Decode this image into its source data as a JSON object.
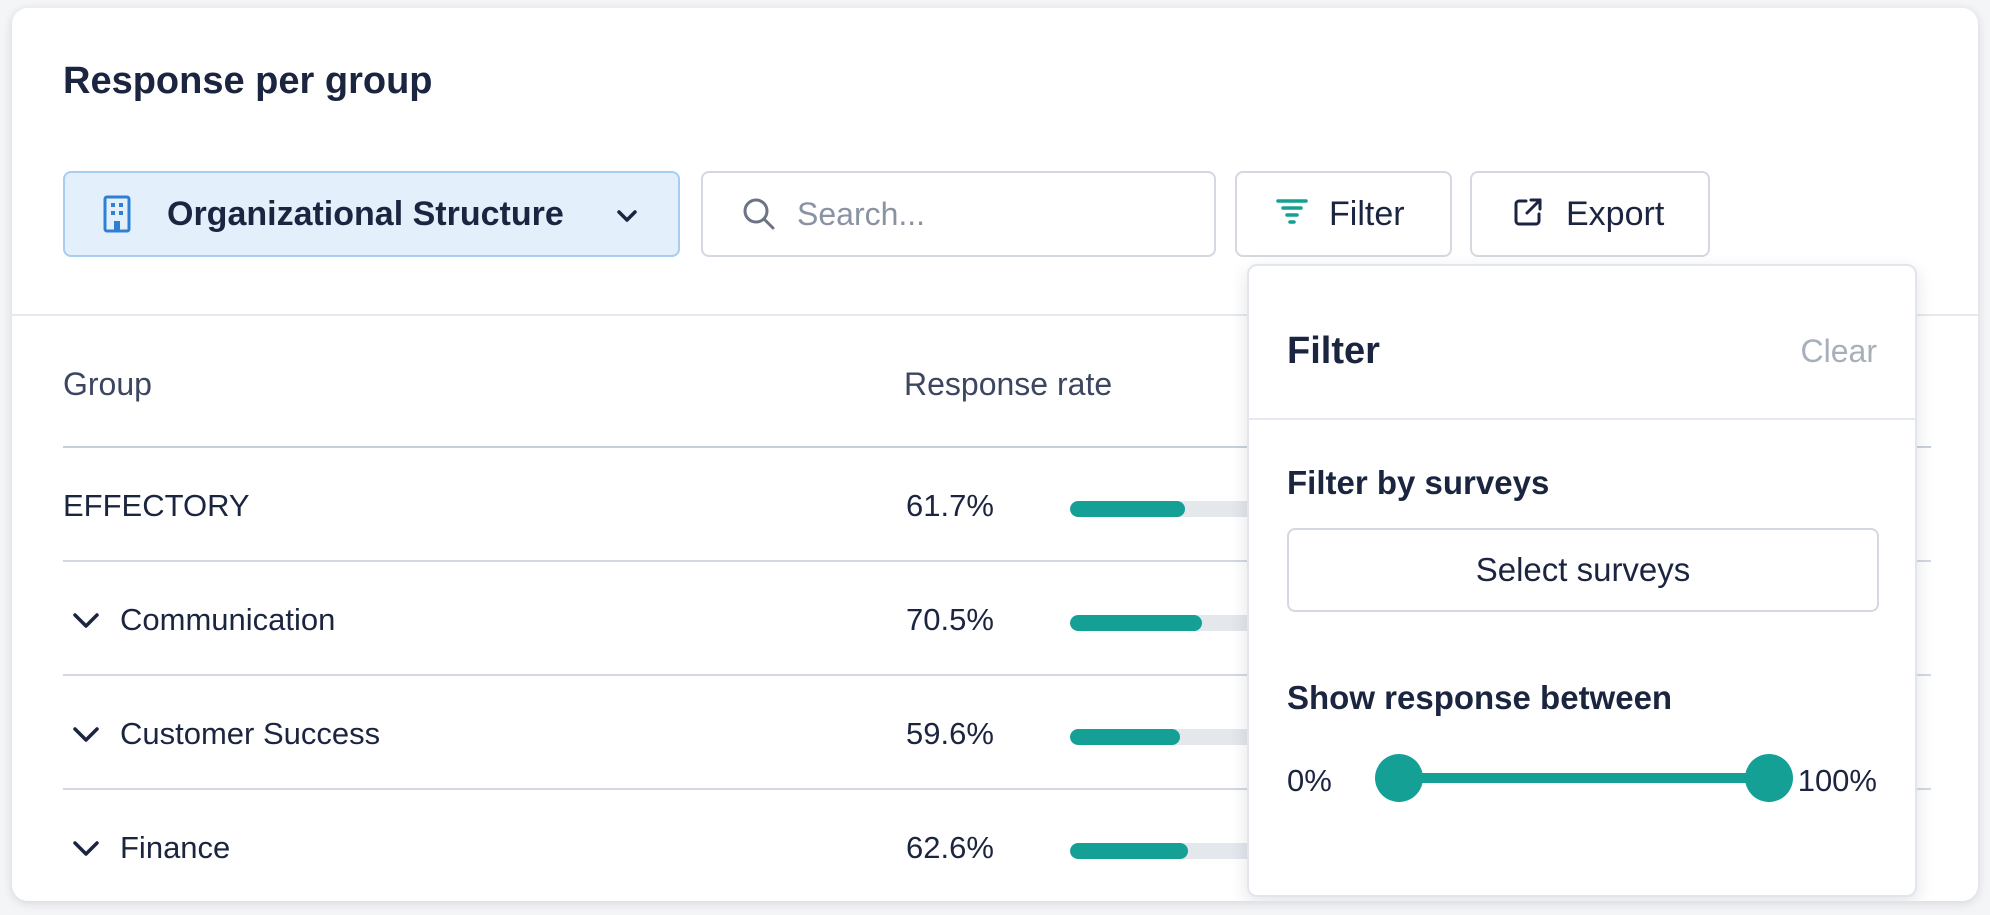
{
  "card": {
    "title": "Response per group"
  },
  "toolbar": {
    "group_select": {
      "label": "Organizational Structure",
      "icon": "building-icon"
    },
    "search": {
      "placeholder": "Search...",
      "value": ""
    },
    "filter_label": "Filter",
    "export_label": "Export"
  },
  "table": {
    "headers": {
      "group": "Group",
      "response_rate": "Response rate"
    },
    "rows": [
      {
        "name": "EFFECTORY",
        "rate": "61.7%",
        "fill": 0.48,
        "expandable": false
      },
      {
        "name": "Communication",
        "rate": "70.5%",
        "fill": 0.55,
        "expandable": true
      },
      {
        "name": "Customer Success",
        "rate": "59.6%",
        "fill": 0.46,
        "expandable": true
      },
      {
        "name": "Finance",
        "rate": "62.6%",
        "fill": 0.49,
        "expandable": true
      }
    ]
  },
  "filter_panel": {
    "title": "Filter",
    "clear_label": "Clear",
    "surveys_heading": "Filter by surveys",
    "select_surveys_label": "Select surveys",
    "response_heading": "Show response between",
    "range_min": "0%",
    "range_max": "100%"
  },
  "colors": {
    "accent": "#14a094",
    "select_bg": "#e3effb",
    "select_border": "#a9cdef",
    "muted_text": "#a8afbc"
  }
}
